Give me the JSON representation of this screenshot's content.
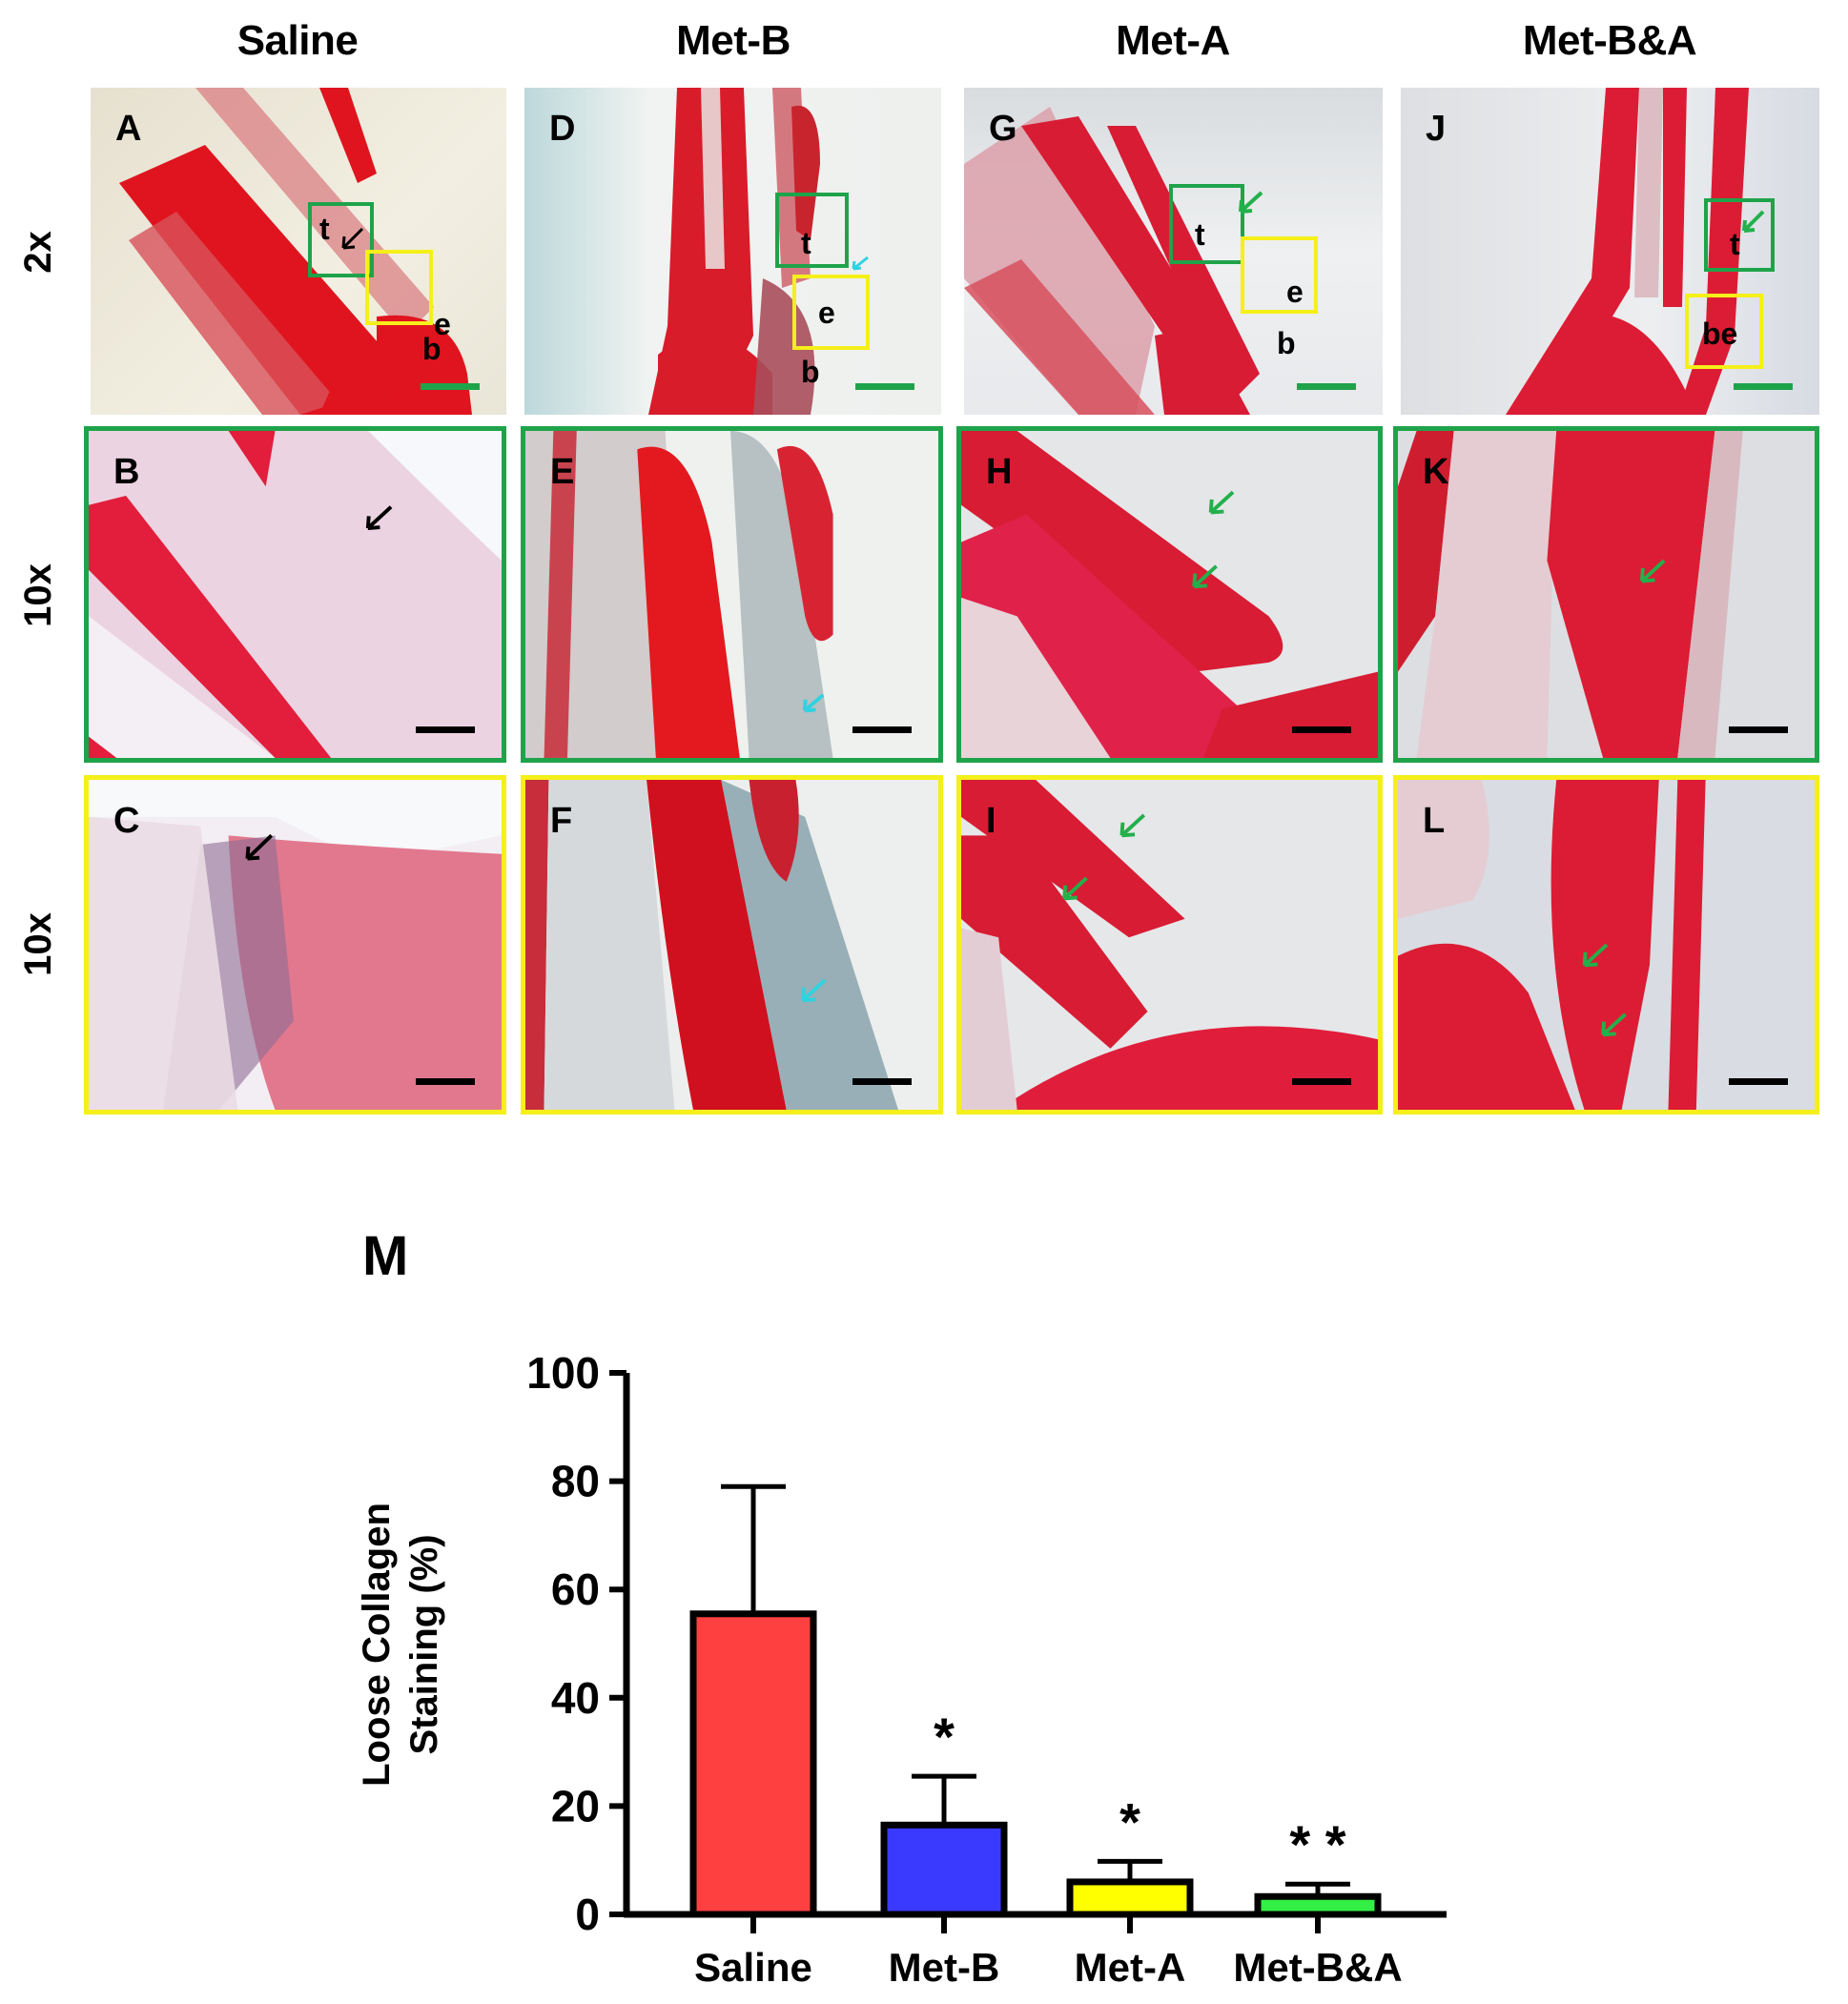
{
  "figure": {
    "column_headers": [
      "Saline",
      "Met-B",
      "Met-A",
      "Met-B&A"
    ],
    "row_labels": [
      "2x",
      "10x",
      "10x"
    ],
    "panels": [
      {
        "letter": "A",
        "group": "Saline",
        "magnification": "2x",
        "frame": "none",
        "roi_labels": [
          "t",
          "e",
          "b"
        ],
        "arrow_color": "#000000"
      },
      {
        "letter": "B",
        "group": "Saline",
        "magnification": "10x",
        "frame": "green",
        "arrow_color": "#000000"
      },
      {
        "letter": "C",
        "group": "Saline",
        "magnification": "10x",
        "frame": "yellow",
        "arrow_color": "#000000"
      },
      {
        "letter": "D",
        "group": "Met-B",
        "magnification": "2x",
        "frame": "none",
        "roi_labels": [
          "t",
          "e",
          "b"
        ],
        "arrow_color": "#2fd3e0"
      },
      {
        "letter": "E",
        "group": "Met-B",
        "magnification": "10x",
        "frame": "green",
        "arrow_color": "#2fd3e0"
      },
      {
        "letter": "F",
        "group": "Met-B",
        "magnification": "10x",
        "frame": "yellow",
        "arrow_color": "#2fd3e0"
      },
      {
        "letter": "G",
        "group": "Met-A",
        "magnification": "2x",
        "frame": "none",
        "roi_labels": [
          "t",
          "e",
          "b"
        ],
        "arrow_color": "#22b04b"
      },
      {
        "letter": "H",
        "group": "Met-A",
        "magnification": "10x",
        "frame": "green",
        "arrow_color": "#22b04b"
      },
      {
        "letter": "I",
        "group": "Met-A",
        "magnification": "10x",
        "frame": "yellow",
        "arrow_color": "#22b04b"
      },
      {
        "letter": "J",
        "group": "Met-B&A",
        "magnification": "2x",
        "frame": "none",
        "roi_labels": [
          "t",
          "be"
        ],
        "arrow_color": "#22b04b"
      },
      {
        "letter": "K",
        "group": "Met-B&A",
        "magnification": "10x",
        "frame": "green",
        "arrow_color": "#22b04b"
      },
      {
        "letter": "L",
        "group": "Met-B&A",
        "magnification": "10x",
        "frame": "yellow",
        "arrow_color": "#22b04b"
      }
    ],
    "frame_colors": {
      "green": "#1fa34a",
      "yellow": "#f5ef1a"
    },
    "scalebar_colors": {
      "2x": "#1fa34a",
      "10x": "#000000"
    },
    "chart_panel_letter": "M"
  },
  "chart_data": {
    "type": "bar",
    "title": "",
    "panel_label": "M",
    "categories": [
      "Saline",
      "Met-B",
      "Met-A",
      "Met-B&A"
    ],
    "values": [
      55.5,
      16.5,
      6,
      3.3
    ],
    "error_upper": [
      79,
      25.5,
      9.8,
      5.6
    ],
    "colors": [
      "#ff4040",
      "#3a3aff",
      "#ffff00",
      "#33ee44"
    ],
    "significance": [
      "",
      "*",
      "*",
      "**"
    ],
    "xlabel": "",
    "ylabel": "Loose Collagen Staining (%)",
    "ylabel_lines": [
      "Loose Collagen",
      "Staining (%)"
    ],
    "ylim": [
      0,
      100
    ],
    "yticks": [
      0,
      20,
      40,
      60,
      80,
      100
    ],
    "grid": false,
    "legend": "none"
  }
}
